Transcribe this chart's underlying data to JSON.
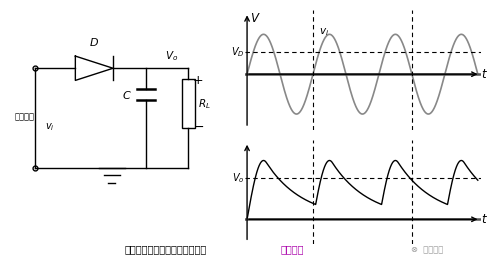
{
  "bg_color": "#ffffff",
  "bottom_text": "电容输出的二极管半波整流电路",
  "bottom_text_color": "#000000",
  "sim_text": "仿真演示",
  "sim_text_color": "#aa00aa",
  "logo_text": "电源联盟",
  "vd_label": "$V_D$",
  "vo_label": "$V_o$",
  "vi_label": "$v_i$",
  "t_label": "$t$",
  "v_label": "$V$"
}
